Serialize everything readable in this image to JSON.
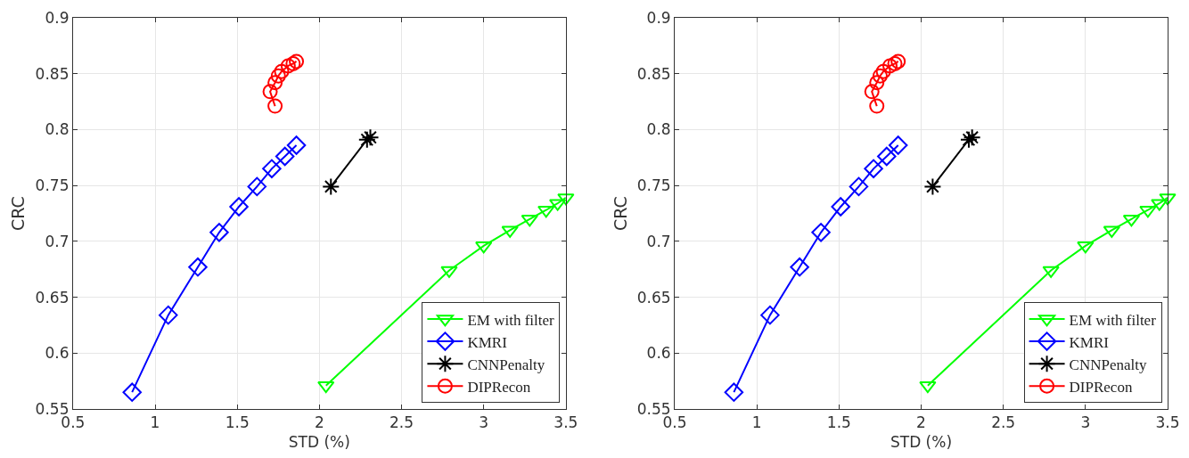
{
  "chart_data": [
    {
      "type": "line",
      "xlabel": "STD (%)",
      "ylabel": "CRC",
      "xlim": [
        0.5,
        3.5
      ],
      "ylim": [
        0.55,
        0.9
      ],
      "xticks": [
        0.5,
        1,
        1.5,
        2,
        2.5,
        3,
        3.5
      ],
      "yticks": [
        0.55,
        0.6,
        0.65,
        0.7,
        0.75,
        0.8,
        0.85,
        0.9
      ],
      "grid": true,
      "legend": "bottom right",
      "series": [
        {
          "name": "EM with filter",
          "color": "#00ff00",
          "marker": "triangle",
          "x": [
            2.04,
            2.79,
            3.0,
            3.16,
            3.28,
            3.38,
            3.45,
            3.5
          ],
          "values": [
            0.571,
            0.674,
            0.696,
            0.71,
            0.72,
            0.728,
            0.734,
            0.739
          ]
        },
        {
          "name": "KMRI",
          "color": "#0000ff",
          "marker": "diamond",
          "x": [
            0.86,
            1.08,
            1.26,
            1.39,
            1.51,
            1.62,
            1.71,
            1.79,
            1.86
          ],
          "values": [
            0.565,
            0.634,
            0.677,
            0.708,
            0.731,
            0.749,
            0.765,
            0.776,
            0.786
          ]
        },
        {
          "name": "CNNPenalty",
          "color": "#000000",
          "marker": "cross",
          "x": [
            2.07,
            2.29,
            2.31
          ],
          "values": [
            0.749,
            0.791,
            0.793
          ]
        },
        {
          "name": "DIPRecon",
          "color": "#ff0000",
          "marker": "circle",
          "x": [
            1.73,
            1.7,
            1.73,
            1.75,
            1.77,
            1.81,
            1.84,
            1.86
          ],
          "values": [
            0.821,
            0.834,
            0.842,
            0.848,
            0.852,
            0.857,
            0.859,
            0.861
          ]
        }
      ]
    },
    {
      "type": "line",
      "xlabel": "STD (%)",
      "ylabel": "CRC",
      "xlim": [
        0.5,
        3.5
      ],
      "ylim": [
        0.55,
        0.9
      ],
      "xticks": [
        0.5,
        1,
        1.5,
        2,
        2.5,
        3,
        3.5
      ],
      "yticks": [
        0.55,
        0.6,
        0.65,
        0.7,
        0.75,
        0.8,
        0.85,
        0.9
      ],
      "grid": true,
      "legend": "bottom right",
      "series": [
        {
          "name": "EM with filter",
          "color": "#00ff00",
          "marker": "triangle",
          "x": [
            2.04,
            2.79,
            3.0,
            3.16,
            3.28,
            3.38,
            3.45,
            3.5
          ],
          "values": [
            0.571,
            0.674,
            0.696,
            0.71,
            0.72,
            0.728,
            0.734,
            0.739
          ]
        },
        {
          "name": "KMRI",
          "color": "#0000ff",
          "marker": "diamond",
          "x": [
            0.86,
            1.08,
            1.26,
            1.39,
            1.51,
            1.62,
            1.71,
            1.79,
            1.86
          ],
          "values": [
            0.565,
            0.634,
            0.677,
            0.708,
            0.731,
            0.749,
            0.765,
            0.776,
            0.786
          ]
        },
        {
          "name": "CNNPenalty",
          "color": "#000000",
          "marker": "cross",
          "x": [
            2.07,
            2.29,
            2.31
          ],
          "values": [
            0.749,
            0.791,
            0.793
          ]
        },
        {
          "name": "DIPRecon",
          "color": "#ff0000",
          "marker": "circle",
          "x": [
            1.73,
            1.7,
            1.73,
            1.75,
            1.77,
            1.81,
            1.84,
            1.86
          ],
          "values": [
            0.821,
            0.834,
            0.842,
            0.848,
            0.852,
            0.857,
            0.859,
            0.861
          ]
        }
      ]
    }
  ]
}
